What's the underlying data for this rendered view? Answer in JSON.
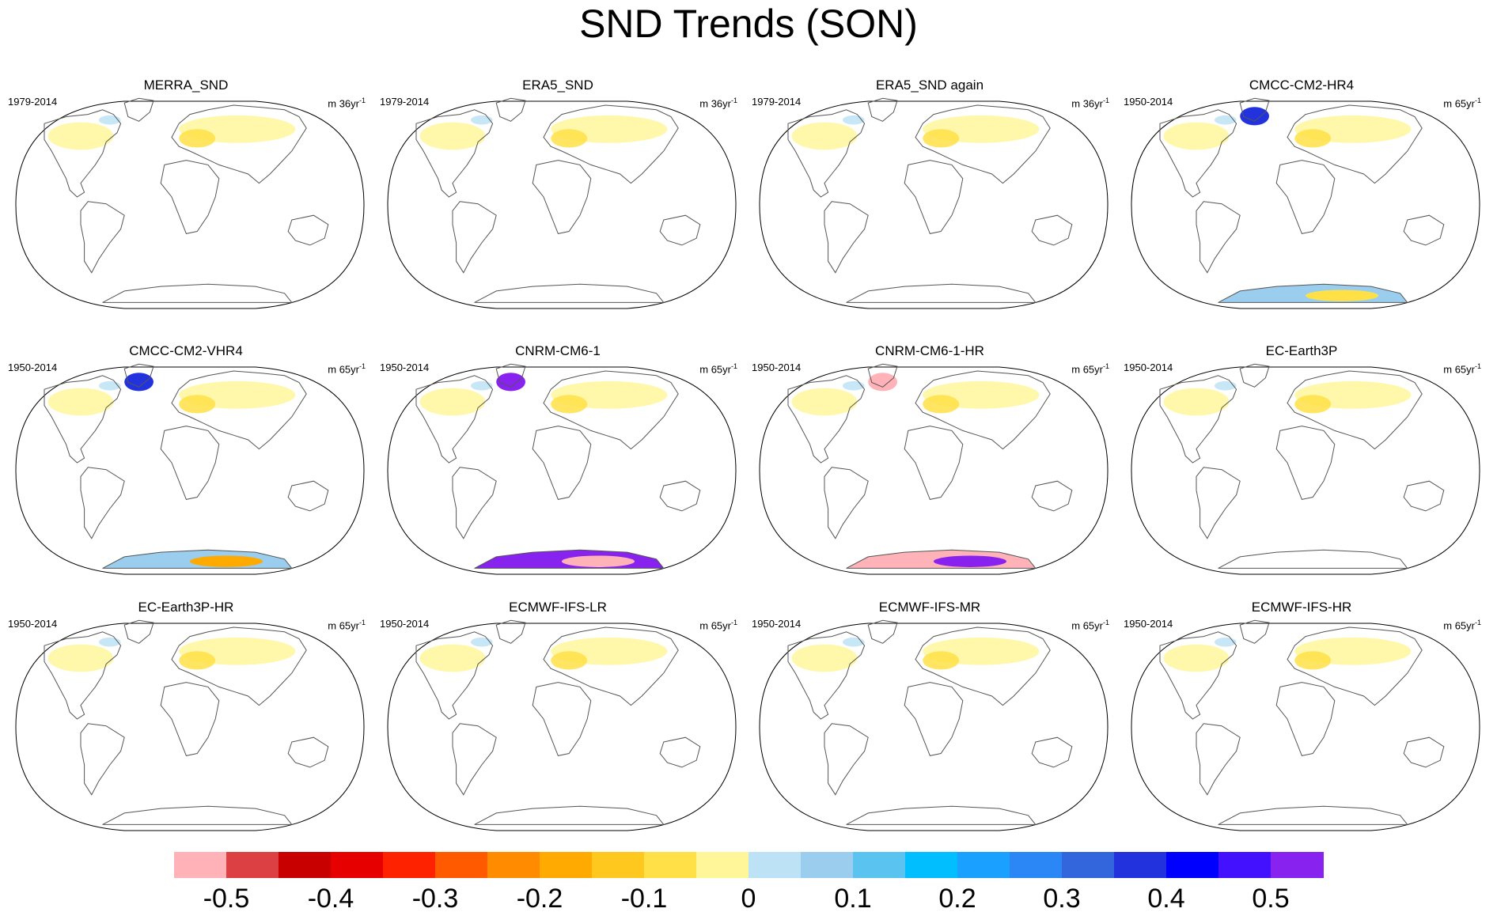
{
  "title": "SND Trends (SON)",
  "panels": [
    {
      "name": "MERRA_SND",
      "period": "1979-2014",
      "units_base": "m 36yr",
      "units_exp": "-1"
    },
    {
      "name": "ERA5_SND",
      "period": "1979-2014",
      "units_base": "m 36yr",
      "units_exp": "-1"
    },
    {
      "name": "ERA5_SND again",
      "period": "1979-2014",
      "units_base": "m 36yr",
      "units_exp": "-1"
    },
    {
      "name": "CMCC-CM2-HR4",
      "period": "1950-2014",
      "units_base": "m 65yr",
      "units_exp": "-1"
    },
    {
      "name": "CMCC-CM2-VHR4",
      "period": "1950-2014",
      "units_base": "m 65yr",
      "units_exp": "-1"
    },
    {
      "name": "CNRM-CM6-1",
      "period": "1950-2014",
      "units_base": "m 65yr",
      "units_exp": "-1"
    },
    {
      "name": "CNRM-CM6-1-HR",
      "period": "1950-2014",
      "units_base": "m 65yr",
      "units_exp": "-1"
    },
    {
      "name": "EC-Earth3P",
      "period": "1950-2014",
      "units_base": "m 65yr",
      "units_exp": "-1"
    },
    {
      "name": "EC-Earth3P-HR",
      "period": "1950-2014",
      "units_base": "m 65yr",
      "units_exp": "-1"
    },
    {
      "name": "ECMWF-IFS-LR",
      "period": "1950-2014",
      "units_base": "m 65yr",
      "units_exp": "-1"
    },
    {
      "name": "ECMWF-IFS-MR",
      "period": "1950-2014",
      "units_base": "m 65yr",
      "units_exp": "-1"
    },
    {
      "name": "ECMWF-IFS-HR",
      "period": "1950-2014",
      "units_base": "m 65yr",
      "units_exp": "-1"
    }
  ],
  "colorbar": {
    "colors": [
      "#ffb3b8",
      "#dd4043",
      "#c80000",
      "#e60000",
      "#ff2200",
      "#ff5a00",
      "#ff8c00",
      "#ffaa00",
      "#ffc81e",
      "#ffe046",
      "#fff69a",
      "#bde2f5",
      "#9acdee",
      "#5ac3f0",
      "#00beff",
      "#1aa0ff",
      "#2a87f5",
      "#3366dd",
      "#2233dd",
      "#0000ff",
      "#4411ff",
      "#8822ee"
    ],
    "tick_labels": [
      "-0.5",
      "-0.4",
      "-0.3",
      "-0.2",
      "-0.1",
      "0",
      "0.1",
      "0.2",
      "0.3",
      "0.4",
      "0.5"
    ]
  }
}
